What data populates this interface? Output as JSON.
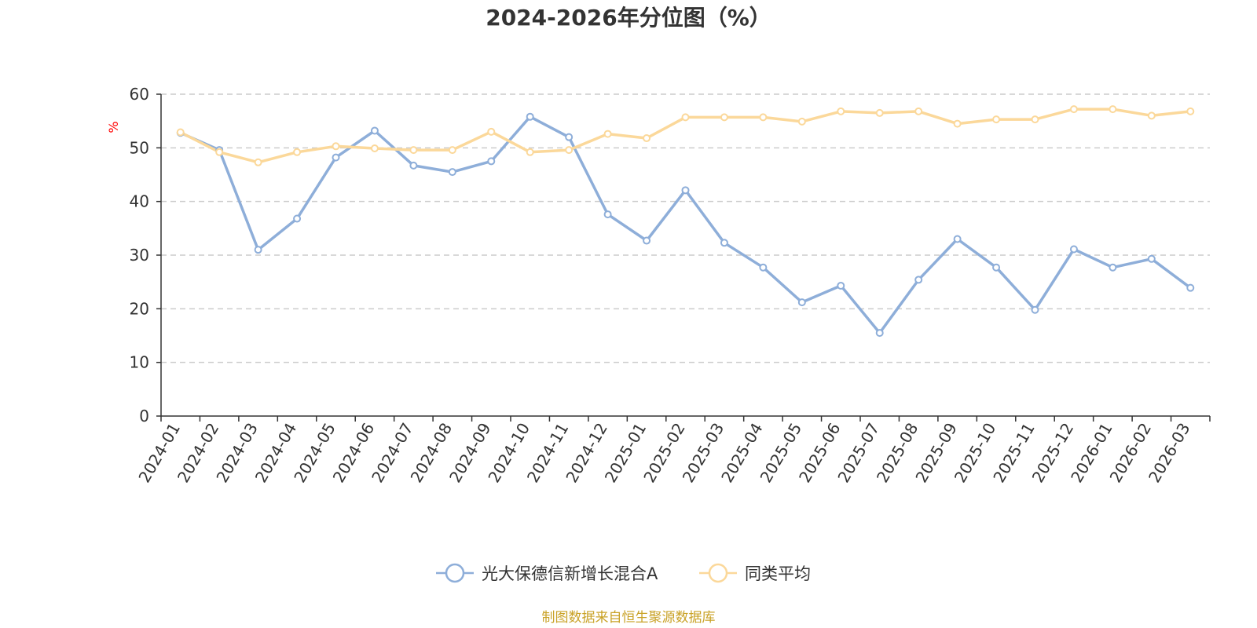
{
  "chart_data": {
    "type": "line",
    "title": "2024-2026年分位图（%）",
    "ylabel": "%",
    "xlabel": "",
    "ylim": [
      0,
      60
    ],
    "yticks": [
      0,
      10,
      20,
      30,
      40,
      50,
      60
    ],
    "grid": true,
    "legend_position": "bottom-center",
    "categories": [
      "2024-01",
      "2024-02",
      "2024-03",
      "2024-04",
      "2024-05",
      "2024-06",
      "2024-07",
      "2024-08",
      "2024-09",
      "2024-10",
      "2024-11",
      "2024-12",
      "2025-01",
      "2025-02",
      "2025-03",
      "2025-04",
      "2025-05",
      "2025-06",
      "2025-07",
      "2025-08",
      "2025-09",
      "2025-10",
      "2025-11",
      "2025-12",
      "2026-01",
      "2026-02",
      "2026-03"
    ],
    "series": [
      {
        "name": "光大保德信新增长混合A",
        "color": "#8eaed9",
        "values": [
          52.8,
          49.6,
          31.0,
          36.8,
          48.2,
          53.2,
          46.7,
          45.5,
          47.5,
          55.8,
          52.0,
          37.6,
          32.7,
          42.1,
          32.3,
          27.7,
          21.2,
          24.3,
          15.5,
          25.4,
          33.0,
          27.7,
          19.8,
          31.1,
          27.7,
          29.3,
          23.9
        ]
      },
      {
        "name": "同类平均",
        "color": "#fbd89a",
        "values": [
          52.9,
          49.2,
          47.3,
          49.2,
          50.3,
          49.9,
          49.6,
          49.6,
          53.0,
          49.2,
          49.6,
          52.6,
          51.8,
          55.7,
          55.7,
          55.7,
          54.9,
          56.8,
          56.5,
          56.8,
          54.5,
          55.3,
          55.3,
          57.2,
          57.2,
          56.0,
          56.8
        ]
      }
    ]
  },
  "source_text": "制图数据来自恒生聚源数据库",
  "source_color": "#c9a227"
}
